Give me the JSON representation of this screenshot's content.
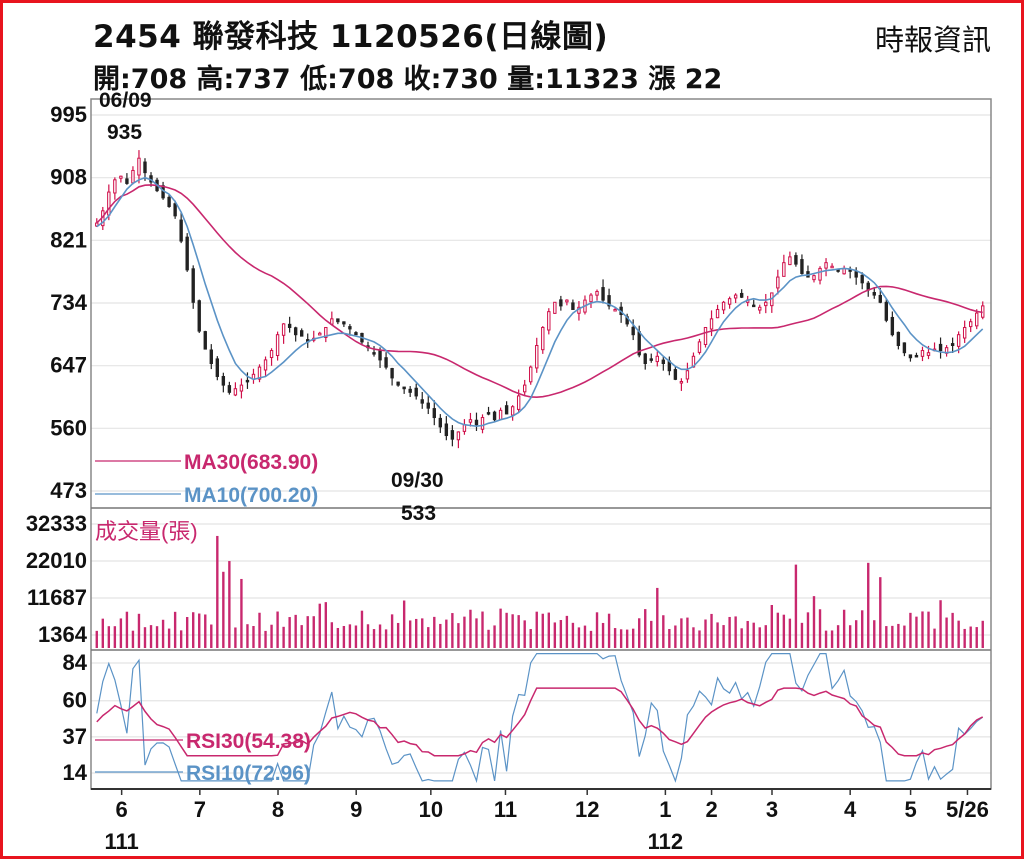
{
  "header": {
    "title": "2454  聯發科技 1120526(日線圖)",
    "quote": "開:708 高:737 低:708 收:730 量:11323 漲 22",
    "source": "時報資訊"
  },
  "colors": {
    "border": "#e8141e",
    "ma30": "#c8286e",
    "ma10": "#5b93c6",
    "volume": "#c8286e",
    "rsi30": "#c8286e",
    "rsi10": "#5b93c6",
    "up": "#d0104a",
    "down": "#222222",
    "grid": "#e4e4e4"
  },
  "chart_data": {
    "type": "candlestick",
    "price_panel": {
      "yticks": [
        995,
        908,
        821,
        734,
        647,
        560,
        473
      ],
      "ylim": [
        473,
        995
      ],
      "high_annotation": {
        "date": "06/09",
        "value": "935"
      },
      "low_annotation": {
        "date": "09/30",
        "value": "533"
      },
      "legend": [
        {
          "key": "ma30",
          "label": "MA30(683.90)"
        },
        {
          "key": "ma10",
          "label": "MA10(700.20)"
        }
      ],
      "closes": [
        845,
        862,
        888,
        905,
        910,
        900,
        918,
        935,
        915,
        902,
        890,
        880,
        868,
        855,
        820,
        780,
        735,
        695,
        670,
        650,
        632,
        620,
        610,
        615,
        620,
        625,
        635,
        645,
        655,
        668,
        690,
        705,
        700,
        690,
        688,
        680,
        685,
        692,
        700,
        712,
        708,
        705,
        698,
        690,
        680,
        672,
        665,
        655,
        645,
        630,
        620,
        615,
        610,
        605,
        595,
        588,
        575,
        562,
        550,
        545,
        555,
        565,
        572,
        565,
        575,
        580,
        572,
        585,
        580,
        590,
        605,
        620,
        645,
        675,
        700,
        722,
        735,
        730,
        738,
        725,
        728,
        738,
        745,
        750,
        738,
        730,
        725,
        718,
        705,
        690,
        662,
        650,
        655,
        660,
        650,
        640,
        628,
        625,
        640,
        660,
        680,
        700,
        712,
        725,
        735,
        740,
        745,
        742,
        738,
        730,
        728,
        735,
        748,
        770,
        790,
        798,
        788,
        775,
        770,
        772,
        782,
        790,
        785,
        780,
        782,
        778,
        770,
        762,
        752,
        745,
        735,
        710,
        690,
        675,
        665,
        658,
        660,
        668,
        665,
        670,
        668,
        672,
        675,
        690,
        700,
        708,
        720,
        730
      ],
      "ma10": [
        840,
        846,
        855,
        868,
        880,
        892,
        900,
        905,
        908,
        905,
        898,
        890,
        885,
        875,
        860,
        840,
        815,
        788,
        760,
        735,
        710,
        688,
        668,
        650,
        640,
        632,
        628,
        630,
        632,
        638,
        645,
        652,
        660,
        668,
        675,
        680,
        684,
        686,
        688,
        690,
        692,
        692,
        690,
        688,
        686,
        683,
        680,
        675,
        668,
        660,
        650,
        642,
        633,
        624,
        615,
        606,
        597,
        588,
        580,
        573,
        568,
        565,
        564,
        563,
        564,
        567,
        569,
        572,
        574,
        577,
        582,
        590,
        602,
        620,
        640,
        660,
        680,
        696,
        710,
        720,
        726,
        730,
        734,
        736,
        735,
        732,
        728,
        722,
        714,
        704,
        694,
        684,
        676,
        668,
        660,
        653,
        646,
        642,
        642,
        646,
        655,
        666,
        680,
        695,
        708,
        718,
        727,
        734,
        738,
        740,
        738,
        738,
        740,
        748,
        756,
        765,
        770,
        772,
        773,
        775,
        777,
        779,
        780,
        781,
        782,
        781,
        779,
        775,
        769,
        762,
        752,
        740,
        727,
        715,
        704,
        692,
        683,
        676,
        671,
        668,
        666,
        665,
        666,
        669,
        674,
        682,
        690,
        698
      ]
    },
    "volume_panel": {
      "title": "成交量(張)",
      "yticks": [
        32333,
        22010,
        11687,
        1364
      ],
      "ylim": [
        0,
        36000
      ]
    },
    "rsi_panel": {
      "yticks": [
        84,
        60,
        37,
        14
      ],
      "ylim": [
        8,
        92
      ],
      "legend": [
        {
          "key": "rsi30",
          "label": "RSI30(54.38)"
        },
        {
          "key": "rsi10",
          "label": "RSI10(72.96)"
        }
      ]
    },
    "x_axis": {
      "months": [
        {
          "label": "6",
          "i": 7
        },
        {
          "label": "7",
          "i": 29
        },
        {
          "label": "8",
          "i": 51
        },
        {
          "label": "9",
          "i": 73
        },
        {
          "label": "10",
          "i": 94
        },
        {
          "label": "11",
          "i": 115
        },
        {
          "label": "12",
          "i": 138
        },
        {
          "label": "1",
          "i": 160
        },
        {
          "label": "2",
          "i": 173
        },
        {
          "label": "3",
          "i": 190
        },
        {
          "label": "4",
          "i": 212
        },
        {
          "label": "5",
          "i": 229
        },
        {
          "label": "5/26",
          "i": 245
        }
      ],
      "years": [
        {
          "label": "111",
          "i": 7
        },
        {
          "label": "112",
          "i": 160
        }
      ]
    }
  }
}
